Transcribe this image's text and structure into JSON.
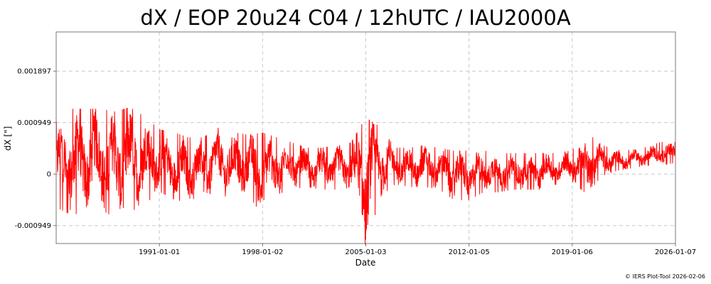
{
  "chart_data": {
    "type": "line",
    "title": "dX / EOP 20u24 C04 / 12hUTC / IAU2000A",
    "xlabel": "Date",
    "ylabel": "dX [\"]",
    "x_range": [
      "1984-01-01",
      "2026-01-07"
    ],
    "ylim": [
      -0.00128,
      0.00262
    ],
    "x_ticks": [
      "1991-01-01",
      "1998-01-02",
      "2005-01-03",
      "2012-01-05",
      "2019-01-06",
      "2026-01-07"
    ],
    "y_ticks": [
      -0.000949,
      0,
      0.000949,
      0.001897
    ],
    "y_tick_labels": [
      "-0.000949",
      "0",
      "0.000949",
      "0.001897"
    ],
    "grid": true,
    "series": [
      {
        "color": "#ff0000",
        "envelope_note": "",
        "x": [
          "1984-01-01",
          "1985-01-01",
          "1986-01-01",
          "1987-01-01",
          "1988-01-01",
          "1989-01-01",
          "1990-01-01",
          "1991-01-01",
          "1992-01-01",
          "1993-01-01",
          "1994-01-01",
          "1995-01-01",
          "1996-01-01",
          "1997-01-01",
          "1998-01-01",
          "1999-01-01",
          "2000-01-01",
          "2001-01-01",
          "2002-01-01",
          "2003-01-01",
          "2004-01-01",
          "2005-01-01",
          "2006-01-01",
          "2007-01-01",
          "2008-01-01",
          "2009-01-01",
          "2010-01-01",
          "2011-01-01",
          "2012-01-01",
          "2013-01-01",
          "2014-01-01",
          "2015-01-01",
          "2016-01-01",
          "2017-01-01",
          "2018-01-01",
          "2019-01-01",
          "2020-01-01",
          "2021-01-01",
          "2022-01-01",
          "2023-01-01",
          "2024-01-01",
          "2025-01-01",
          "2026-01-01"
        ],
        "max": [
          0.001,
          0.00125,
          0.00125,
          0.00125,
          0.0012,
          0.00128,
          0.0011,
          0.00085,
          0.0008,
          0.0007,
          0.0007,
          0.0009,
          0.0008,
          0.00075,
          0.0008,
          0.0007,
          0.0006,
          0.0005,
          0.0005,
          0.00055,
          0.0006,
          0.0011,
          0.0009,
          0.0005,
          0.0005,
          0.00055,
          0.0005,
          0.00045,
          0.00045,
          0.00045,
          0.0004,
          0.0004,
          0.0004,
          0.0004,
          0.0004,
          0.00045,
          0.0008,
          0.00055,
          0.00045,
          0.00045,
          0.0005,
          0.0006,
          0.0006
        ],
        "min": [
          -0.00065,
          -0.0008,
          -0.00075,
          -0.0007,
          -0.00085,
          -0.00075,
          -0.0006,
          -0.00035,
          -0.0005,
          -0.00055,
          -0.00035,
          -0.00045,
          -0.0005,
          -0.0004,
          -0.0008,
          -0.0004,
          -0.0003,
          -0.00025,
          -0.0003,
          -0.0003,
          -0.00035,
          -0.0014,
          -0.00045,
          -0.0002,
          -0.00025,
          -0.00025,
          -0.0003,
          -0.0005,
          -0.0005,
          -0.00035,
          -0.00035,
          -0.0003,
          -0.0003,
          -0.0003,
          -0.0002,
          -0.00015,
          -0.0004,
          -5e-05,
          5e-05,
          0.0001,
          0.00015,
          0.00015,
          0.0002
        ]
      }
    ]
  },
  "footer": {
    "credit": "© IERS Plot-Tool 2026-02-06"
  }
}
